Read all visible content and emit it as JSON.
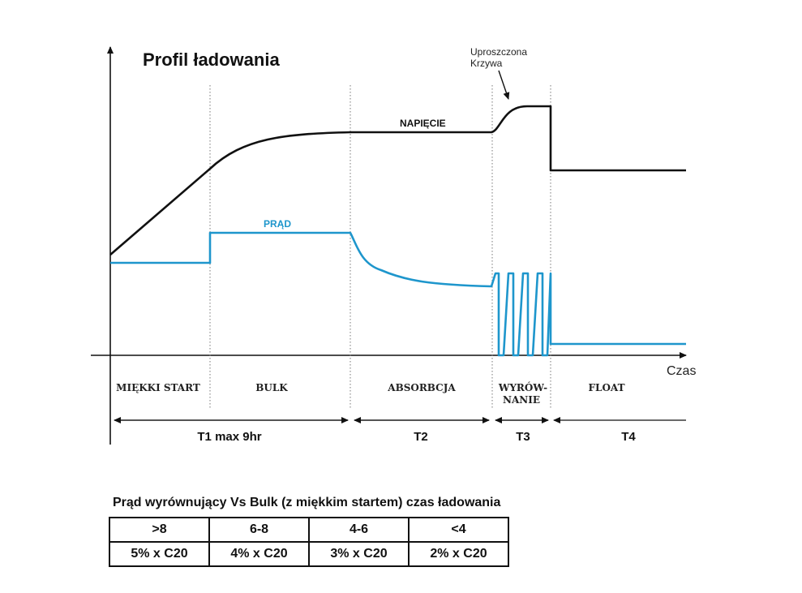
{
  "diagram": {
    "title": "Profil ładowania",
    "annotation_line1": "Uproszczona",
    "annotation_line2": "Krzywa",
    "voltage_label": "NAPIĘCIE",
    "current_label": "PRĄD",
    "x_axis_label": "Czas",
    "phases": {
      "soft_start": "MIĘKKI START",
      "bulk": "BULK",
      "absorption": "ABSORBCJA",
      "equalize_line1": "WYRÓW-",
      "equalize_line2": "NANIE",
      "float": "FLOAT"
    },
    "periods": {
      "t1": "T1 max 9hr",
      "t2": "T2",
      "t3": "T3",
      "t4": "T4"
    },
    "colors": {
      "voltage": "#111111",
      "current": "#1e96cc"
    }
  },
  "table": {
    "title": "Prąd wyrównujący Vs Bulk (z miękkim startem) czas ładowania",
    "headers": [
      ">8",
      "6-8",
      "4-6",
      "<4"
    ],
    "values": [
      "5% x C20",
      "4% x C20",
      "3% x C20",
      "2% x C20"
    ]
  }
}
